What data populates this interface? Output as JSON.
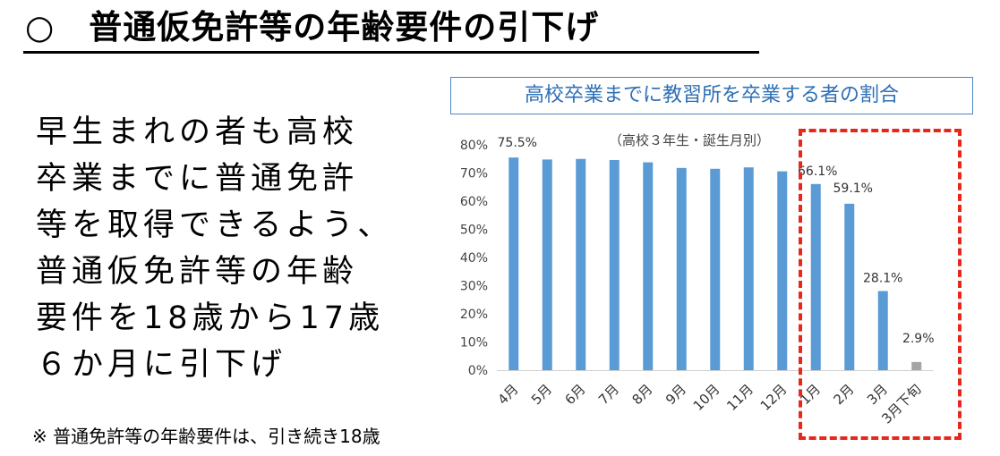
{
  "heading": "○　普通仮免許等の年齢要件の引下げ",
  "body_lines": [
    "早生まれの者も高校",
    "卒業までに普通免許",
    "等を取得できるよう、",
    "普通仮免許等の年齢",
    "要件を18歳から17歳",
    "６か月に引下げ"
  ],
  "footnote": "※  普通免許等の年齢要件は、引き続き18歳",
  "colors": {
    "bar": "#5b9bd5",
    "bar_last": "#a5a5a5",
    "highlight": "#e8271b",
    "title_border": "#4a86c5",
    "title_text": "#2e6fb5"
  },
  "chart_data": {
    "type": "bar",
    "title": "高校卒業までに教習所を卒業する者の割合",
    "subtitle": "（高校３年生・誕生月別）",
    "categories": [
      "4月",
      "5月",
      "6月",
      "7月",
      "8月",
      "9月",
      "10月",
      "11月",
      "12月",
      "1月",
      "2月",
      "3月",
      "3月下旬"
    ],
    "values": [
      75.5,
      74.8,
      75.0,
      74.6,
      73.8,
      71.8,
      71.5,
      72.0,
      70.6,
      66.1,
      59.1,
      28.1,
      2.9
    ],
    "data_labels": [
      {
        "index": 0,
        "text": "75.5%"
      },
      {
        "index": 9,
        "text": "66.1%"
      },
      {
        "index": 10,
        "text": "59.1%"
      },
      {
        "index": 11,
        "text": "28.1%"
      },
      {
        "index": 12,
        "text": "2.9%"
      }
    ],
    "ylim": [
      0,
      80
    ],
    "yticks": [
      "0%",
      "10%",
      "20%",
      "30%",
      "40%",
      "50%",
      "60%",
      "70%",
      "80%"
    ],
    "highlighted_categories": [
      "1月",
      "2月",
      "3月",
      "3月下旬"
    ],
    "grid": false,
    "legend": "none"
  }
}
